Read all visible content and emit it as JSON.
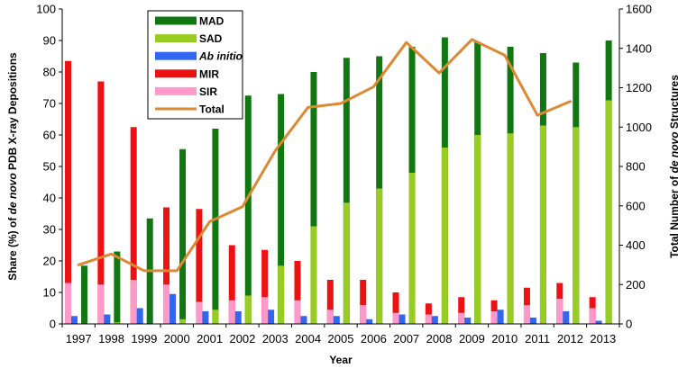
{
  "chart_data": {
    "type": "bar",
    "stacking": "MIR, SIR, Ab initio, MAD, SAD bars side by side per year; MIR stacked on SIR, MAD stacked on SAD; Total drawn as line on secondary axis",
    "categories": [
      "1997",
      "1998",
      "1999",
      "2000",
      "2001",
      "2002",
      "2003",
      "2004",
      "2005",
      "2006",
      "2007",
      "2008",
      "2009",
      "2010",
      "2011",
      "2012",
      "2013"
    ],
    "xlabel": "Year",
    "ylabel_left_parts": [
      "Share (%) of ",
      "de novo",
      " PDB X-ray Depositions"
    ],
    "ylabel_right_parts": [
      "Total Number of ",
      "de novo",
      " Structures"
    ],
    "ylim": [
      0,
      100
    ],
    "y_ticks": [
      0,
      10,
      20,
      30,
      40,
      50,
      60,
      70,
      80,
      90,
      100
    ],
    "y2lim": [
      0,
      1600
    ],
    "y2_ticks": [
      0,
      200,
      400,
      600,
      800,
      1000,
      1200,
      1400,
      1600
    ],
    "series": [
      {
        "name": "MAD",
        "color": "#117711",
        "values": [
          18.5,
          23,
          33.5,
          55.5,
          62,
          72.5,
          73,
          80,
          84.5,
          85,
          88,
          91,
          89.5,
          88,
          86,
          83,
          90
        ]
      },
      {
        "name": "SAD",
        "color": "#99cc22",
        "values": [
          0,
          0.5,
          0,
          1.5,
          4.5,
          9,
          18.5,
          31,
          38.5,
          43,
          48,
          56,
          60,
          60.5,
          63,
          62.5,
          71
        ]
      },
      {
        "name": "Ab initio",
        "italic": true,
        "color": "#3366ee",
        "values": [
          2.5,
          3,
          5,
          9.5,
          4,
          4,
          4.5,
          2.5,
          2.5,
          1.5,
          3,
          2.5,
          2,
          4.5,
          2,
          4,
          1
        ]
      },
      {
        "name": "MIR",
        "color": "#ee1111",
        "values": [
          83.5,
          77,
          62.5,
          37,
          36.5,
          25,
          23.5,
          20,
          14,
          14,
          10,
          6.5,
          8.5,
          7.5,
          11.5,
          13,
          8.5
        ]
      },
      {
        "name": "SIR",
        "color": "#ff99cc",
        "values": [
          13,
          12.5,
          14,
          12.5,
          7,
          7.5,
          8.5,
          7.5,
          4.5,
          6,
          3.5,
          3,
          3.5,
          4,
          6,
          8,
          5
        ]
      },
      {
        "name": "Total",
        "type": "line",
        "axis": "right",
        "color": "#dd8833",
        "values": [
          300,
          355,
          270,
          270,
          520,
          595,
          880,
          1100,
          1120,
          1205,
          1430,
          1275,
          1445,
          1365,
          1060,
          1130,
          null
        ]
      }
    ],
    "legend": {
      "position": "top-left inside plot",
      "items": [
        {
          "name": "MAD",
          "color": "#117711",
          "shape": "bar"
        },
        {
          "name": "SAD",
          "color": "#99cc22",
          "shape": "bar"
        },
        {
          "name": "Ab initio",
          "color": "#3366ee",
          "shape": "bar",
          "italic": true
        },
        {
          "name": "MIR",
          "color": "#ee1111",
          "shape": "bar"
        },
        {
          "name": "SIR",
          "color": "#ff99cc",
          "shape": "bar"
        },
        {
          "name": "Total",
          "color": "#dd8833",
          "shape": "line"
        }
      ]
    },
    "grid": false
  }
}
